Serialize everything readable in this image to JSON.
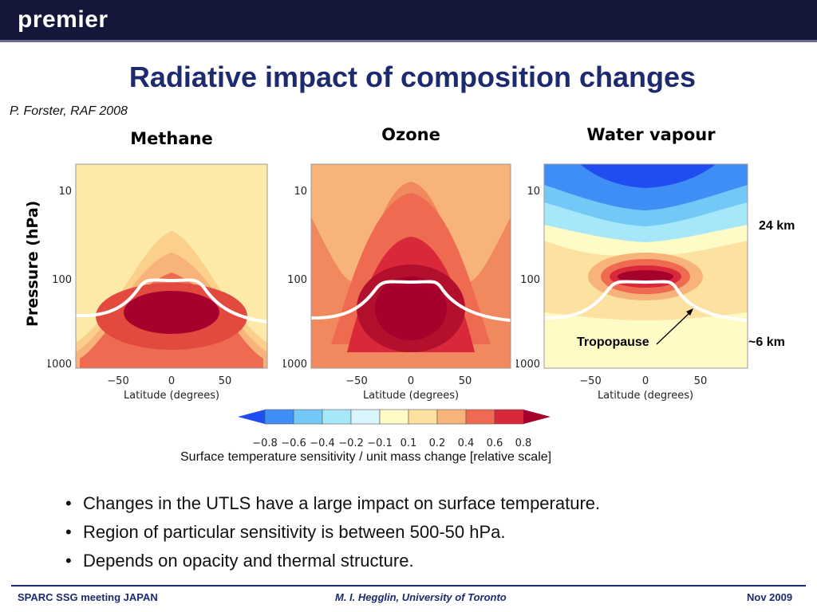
{
  "header": {
    "brand": "premier"
  },
  "slide": {
    "title": "Radiative impact of composition changes",
    "citation": "P. Forster, RAF 2008"
  },
  "panels": [
    {
      "title": "Methane"
    },
    {
      "title": "Ozone"
    },
    {
      "title": "Water vapour"
    }
  ],
  "axes": {
    "ylabel": "Pressure (hPa)",
    "xlabel": "Latitude (degrees)",
    "yticks": [
      "10",
      "100",
      "1000"
    ],
    "xticks": [
      "−50",
      "0",
      "50"
    ]
  },
  "annotations": {
    "top_km": "24 km",
    "bottom_km": "~6 km",
    "tropopause": "Tropopause"
  },
  "colorbar": {
    "ticks": [
      "−0.8",
      "−0.6",
      "−0.4",
      "−0.2",
      "−0.1",
      "0.1",
      "0.2",
      "0.4",
      "0.6",
      "0.8"
    ],
    "colors": [
      "#1f4df0",
      "#3e8ef5",
      "#73c8f7",
      "#a6e8fa",
      "#d8f6fc",
      "#fffbc6",
      "#fde1a0",
      "#f8b37a",
      "#ee6a50",
      "#d8283a",
      "#a6002c"
    ],
    "caption": "Surface temperature sensitivity / unit mass change [relative scale]"
  },
  "bullets": [
    "Changes in the UTLS have a large impact on surface temperature.",
    "Region of particular sensitivity is between 500-50 hPa.",
    "Depends on opacity and thermal structure."
  ],
  "footer": {
    "left": "SPARC SSG meeting JAPAN",
    "center": "M. I. Hegglin, University of Toronto",
    "right": "Nov 2009"
  }
}
